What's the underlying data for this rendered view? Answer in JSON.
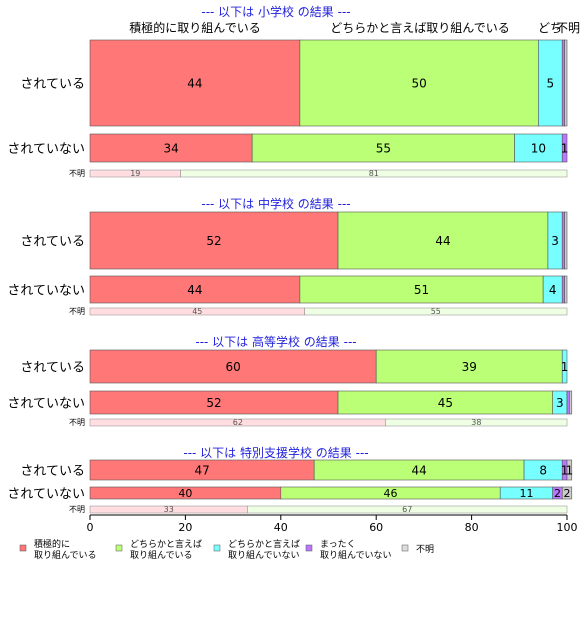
{
  "chart_data": {
    "type": "bar",
    "orientation": "horizontal",
    "stacked": true,
    "percent": true,
    "xlim": [
      0,
      100
    ],
    "xticks": [
      0,
      20,
      40,
      60,
      80,
      100
    ],
    "top_labels": [
      "積極的に取り組んでいる",
      "どちらかと言えば取り組んでいる",
      "どち",
      "不明"
    ],
    "legend": {
      "position": "bottom",
      "items": [
        {
          "label": "積極的に\n取り組んでいる",
          "color": "#FF7777"
        },
        {
          "label": "どちらかと言えば\n取り組んでいる",
          "color": "#BBFF77"
        },
        {
          "label": "どちらかと言えば\n取り組んでいない",
          "color": "#77FFFF"
        },
        {
          "label": "まったく\n取り組んでいない",
          "color": "#BB77FF"
        },
        {
          "label": "不明",
          "color": "#DDDDDD"
        }
      ]
    },
    "groups": [
      {
        "title": "--- 以下は 小学校 の結果 ---",
        "rows": [
          {
            "label": "されている",
            "values": [
              44,
              50,
              5,
              0.5,
              0.5
            ]
          },
          {
            "label": "されていない",
            "values": [
              34,
              55,
              10,
              1,
              0
            ]
          }
        ],
        "unknown": {
          "label": "不明",
          "values": [
            19,
            81
          ]
        }
      },
      {
        "title": "--- 以下は 中学校 の結果 ---",
        "rows": [
          {
            "label": "されている",
            "values": [
              52,
              44,
              3,
              0.5,
              0.5
            ]
          },
          {
            "label": "されていない",
            "values": [
              44,
              51,
              4,
              0.5,
              0.5
            ]
          }
        ],
        "unknown": {
          "label": "不明",
          "values": [
            45,
            55
          ]
        }
      },
      {
        "title": "--- 以下は 高等学校 の結果 ---",
        "rows": [
          {
            "label": "されている",
            "values": [
              60,
              39,
              1,
              0,
              0
            ]
          },
          {
            "label": "されていない",
            "values": [
              52,
              45,
              3,
              0.5,
              0.5
            ]
          }
        ],
        "unknown": {
          "label": "不明",
          "values": [
            62,
            38
          ]
        }
      },
      {
        "title": "--- 以下は 特別支援学校 の結果 ---",
        "rows": [
          {
            "label": "されている",
            "values": [
              47,
              44,
              8,
              1,
              1
            ]
          },
          {
            "label": "されていない",
            "values": [
              40,
              46,
              11,
              2,
              2
            ]
          }
        ],
        "unknown": {
          "label": "不明",
          "values": [
            33,
            67
          ]
        }
      }
    ]
  }
}
